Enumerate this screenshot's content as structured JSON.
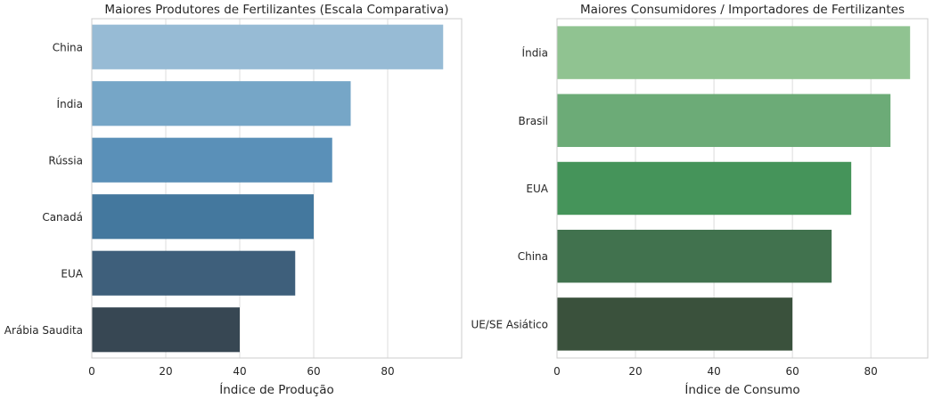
{
  "chart_data": [
    {
      "type": "bar",
      "orientation": "horizontal",
      "title": "Maiores Produtores de Fertilizantes (Escala Comparativa)",
      "xlabel": "Índice de Produção",
      "ylabel": "",
      "categories": [
        "China",
        "Índia",
        "Rússia",
        "Canadá",
        "EUA",
        "Arábia Saudita"
      ],
      "values": [
        95,
        70,
        65,
        60,
        55,
        40
      ],
      "xlim": [
        0,
        100
      ],
      "xticks": [
        0,
        20,
        40,
        60,
        80
      ],
      "grid": "vertical",
      "colors": [
        "#97bbd5",
        "#76a6c7",
        "#5a90b8",
        "#44789e",
        "#3e5f7b",
        "#374753"
      ]
    },
    {
      "type": "bar",
      "orientation": "horizontal",
      "title": "Maiores Consumidores / Importadores de Fertilizantes",
      "xlabel": "Índice de Consumo",
      "ylabel": "",
      "categories": [
        "Índia",
        "Brasil",
        "EUA",
        "China",
        "UE/SE Asiático"
      ],
      "values": [
        90,
        85,
        75,
        70,
        60
      ],
      "xlim": [
        0,
        94.5
      ],
      "xticks": [
        0,
        20,
        40,
        60,
        80
      ],
      "grid": "vertical",
      "colors": [
        "#90c391",
        "#6cab77",
        "#45945a",
        "#41724e",
        "#3a513c"
      ]
    }
  ]
}
